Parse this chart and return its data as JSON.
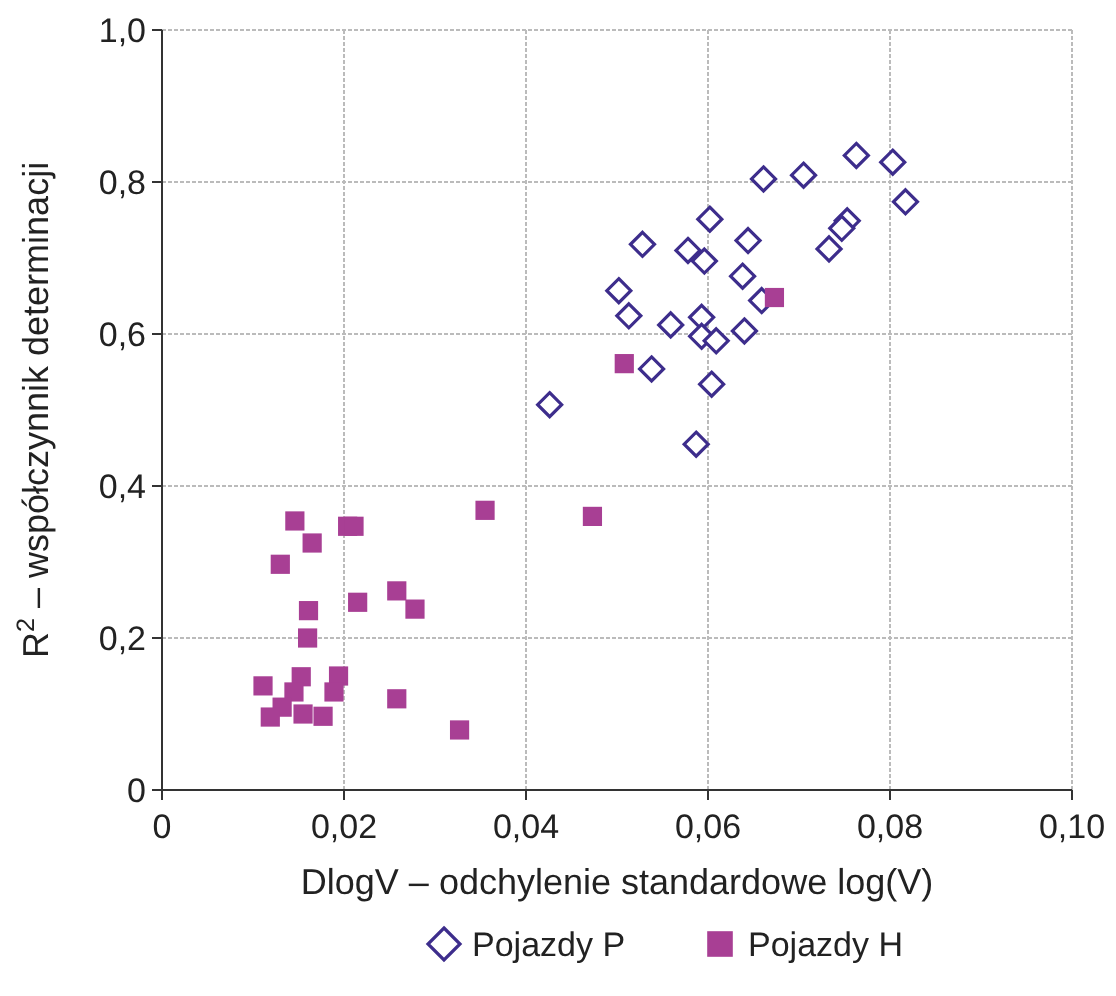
{
  "chart_data": {
    "type": "scatter",
    "xlabel": "DlogV – odchylenie standardowe log(V)",
    "ylabel": "R$^{2}$ – współczynnik determinacji",
    "xlim": [
      0,
      0.1
    ],
    "ylim": [
      0,
      1
    ],
    "xticks": [
      0,
      {
        "value": 0.02,
        "label": "0,02"
      },
      {
        "value": 0.04,
        "label": "0,04"
      },
      {
        "value": 0.06,
        "label": "0,06"
      },
      {
        "value": 0.08,
        "label": "0,08"
      },
      {
        "value": 0.1,
        "label": "0,10"
      }
    ],
    "yticks": [
      0,
      {
        "value": 0.2,
        "label": "0,2"
      },
      {
        "value": 0.4,
        "label": "0,4"
      },
      {
        "value": 0.6,
        "label": "0,6"
      },
      {
        "value": 0.8,
        "label": "0,8"
      },
      {
        "value": 1,
        "label": "1,0"
      }
    ],
    "grid": true,
    "legend": "bottom",
    "series": [
      {
        "name": "Pojazdy P",
        "color": "#3d2d8c",
        "marker": "diamond",
        "x": [
          0.0763,
          0.0803,
          0.0661,
          0.0705,
          0.0817,
          0.0753,
          0.0747,
          0.0733,
          0.0602,
          0.0644,
          0.0528,
          0.0578,
          0.0596,
          0.0638,
          0.0502,
          0.0513,
          0.0559,
          0.0593,
          0.0659,
          0.0593,
          0.0609,
          0.064,
          0.0538,
          0.0604,
          0.0426,
          0.0587
        ],
        "values": [
          0.835,
          0.826,
          0.804,
          0.809,
          0.774,
          0.749,
          0.739,
          0.712,
          0.751,
          0.723,
          0.718,
          0.71,
          0.696,
          0.676,
          0.657,
          0.624,
          0.612,
          0.622,
          0.644,
          0.597,
          0.591,
          0.604,
          0.554,
          0.534,
          0.507,
          0.455
        ]
      },
      {
        "name": "Pojazdy H",
        "color": "#a83f94",
        "marker": "square",
        "x": [
          0.0673,
          0.0508,
          0.0355,
          0.0473,
          0.0146,
          0.0204,
          0.0211,
          0.0165,
          0.013,
          0.0258,
          0.0215,
          0.0278,
          0.0161,
          0.016,
          0.0111,
          0.0153,
          0.0194,
          0.0145,
          0.0189,
          0.0258,
          0.0132,
          0.0155,
          0.0177,
          0.0119,
          0.0327
        ],
        "values": [
          0.648,
          0.561,
          0.368,
          0.36,
          0.354,
          0.347,
          0.347,
          0.325,
          0.297,
          0.262,
          0.247,
          0.238,
          0.236,
          0.2,
          0.137,
          0.149,
          0.15,
          0.129,
          0.129,
          0.12,
          0.109,
          0.1,
          0.097,
          0.096,
          0.079
        ]
      }
    ]
  }
}
